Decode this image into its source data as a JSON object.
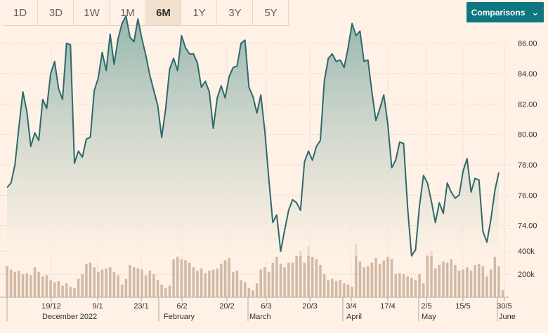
{
  "toolbar": {
    "ranges": [
      "1D",
      "3D",
      "1W",
      "1M",
      "6M",
      "1Y",
      "3Y",
      "5Y"
    ],
    "active_range": "6M",
    "comparisons_label": "Comparisons",
    "comparisons_icon": "chevron-down-icon"
  },
  "chart_data": {
    "type": "area",
    "price_ylim": [
      72.0,
      87.0
    ],
    "price_ticks": [
      "74.00",
      "76.00",
      "78.00",
      "80.00",
      "82.00",
      "84.00",
      "86.00"
    ],
    "volume_ylim": [
      0,
      480000
    ],
    "volume_ticks": [
      "200k",
      "400k"
    ],
    "x_tick_labels": [
      "19/12",
      "9/1",
      "23/1",
      "6/2",
      "20/2",
      "6/3",
      "20/3",
      "3/4",
      "17/4",
      "2/5",
      "15/5",
      "30/5"
    ],
    "month_labels": [
      "December 2022",
      "February",
      "March",
      "April",
      "May",
      "June"
    ],
    "price": [
      76.5,
      76.8,
      78.0,
      80.5,
      82.8,
      81.5,
      79.2,
      80.1,
      79.6,
      82.3,
      81.7,
      84.0,
      84.8,
      83.0,
      82.3,
      86.0,
      85.9,
      78.1,
      78.9,
      78.5,
      79.7,
      79.8,
      82.9,
      83.7,
      85.4,
      84.2,
      86.6,
      84.6,
      86.3,
      87.3,
      87.8,
      86.4,
      86.1,
      87.6,
      86.3,
      85.2,
      83.9,
      82.9,
      81.9,
      79.8,
      81.7,
      84.3,
      85.0,
      84.2,
      86.5,
      85.7,
      85.3,
      85.3,
      84.7,
      83.1,
      83.5,
      82.8,
      80.4,
      82.4,
      83.2,
      82.4,
      83.8,
      84.4,
      84.5,
      86.0,
      86.2,
      83.1,
      82.5,
      81.4,
      82.6,
      80.2,
      77.1,
      74.2,
      74.7,
      72.3,
      73.7,
      75.0,
      75.7,
      75.5,
      75.0,
      78.2,
      78.9,
      78.3,
      79.2,
      79.6,
      83.5,
      85.0,
      85.3,
      84.8,
      84.9,
      84.4,
      85.7,
      87.3,
      86.5,
      86.8,
      84.8,
      84.9,
      82.8,
      80.9,
      81.7,
      82.6,
      80.7,
      77.8,
      78.3,
      79.5,
      79.4,
      75.2,
      72.0,
      72.4,
      75.3,
      77.3,
      76.8,
      75.6,
      74.2,
      75.5,
      74.8,
      76.8,
      76.2,
      75.8,
      76.0,
      77.6,
      78.4,
      76.2,
      77.1,
      77.0,
      73.6,
      72.9,
      74.4,
      76.3,
      77.5
    ],
    "volume": [
      270000,
      240000,
      220000,
      230000,
      200000,
      210000,
      190000,
      260000,
      220000,
      180000,
      190000,
      150000,
      130000,
      140000,
      100000,
      120000,
      90000,
      80000,
      160000,
      200000,
      290000,
      300000,
      260000,
      220000,
      240000,
      250000,
      260000,
      220000,
      190000,
      110000,
      160000,
      280000,
      260000,
      250000,
      240000,
      190000,
      230000,
      200000,
      150000,
      110000,
      80000,
      100000,
      330000,
      350000,
      330000,
      320000,
      300000,
      260000,
      230000,
      250000,
      210000,
      230000,
      240000,
      250000,
      290000,
      320000,
      340000,
      220000,
      230000,
      150000,
      130000,
      80000,
      60000,
      120000,
      240000,
      260000,
      220000,
      300000,
      350000,
      290000,
      260000,
      300000,
      300000,
      360000,
      400000,
      300000,
      440000,
      350000,
      330000,
      280000,
      200000,
      150000,
      160000,
      140000,
      150000,
      120000,
      110000,
      90000,
      460000,
      310000,
      260000,
      270000,
      300000,
      340000,
      290000,
      320000,
      350000,
      330000,
      200000,
      210000,
      200000,
      180000,
      170000,
      150000,
      200000,
      120000,
      370000,
      400000,
      250000,
      280000,
      310000,
      300000,
      330000,
      280000,
      230000,
      240000,
      260000,
      230000,
      280000,
      290000,
      270000,
      180000,
      240000,
      350000,
      270000,
      60000
    ]
  }
}
